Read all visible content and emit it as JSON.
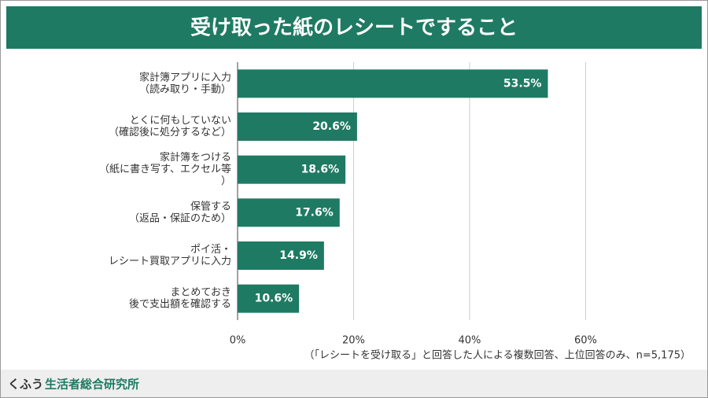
{
  "chart_data": {
    "type": "hbar",
    "title": "受け取った紙のレシートですること",
    "categories": [
      [
        "家計簿アプリに入力",
        "（読み取り・手動）"
      ],
      [
        "とくに何もしていない",
        "（確認後に処分するなど）"
      ],
      [
        "家計簿をつける",
        "（紙に書き写す、エクセル等",
        "）"
      ],
      [
        "保管する",
        "（返品・保証のため）"
      ],
      [
        "ポイ活・",
        "レシート買取アプリに入力"
      ],
      [
        "まとめておき",
        "後で支出額を確認する"
      ]
    ],
    "values": [
      53.5,
      20.6,
      18.6,
      17.6,
      14.9,
      10.6
    ],
    "value_labels": [
      "53.5%",
      "20.6%",
      "18.6%",
      "17.6%",
      "14.9%",
      "10.6%"
    ],
    "color": "#1f7a63",
    "xlim": [
      0,
      75
    ],
    "xticks": [
      {
        "value": 0,
        "label": "0%"
      },
      {
        "value": 20,
        "label": "20%"
      },
      {
        "value": 40,
        "label": "40%"
      },
      {
        "value": 60,
        "label": "60%"
      }
    ],
    "grid": true,
    "note": "（「レシートを受け取る」と回答した人による複数回答、上位回答のみ、n=5,175）"
  },
  "footer": {
    "brand": "くふう",
    "org": "生活者総合研究所"
  }
}
